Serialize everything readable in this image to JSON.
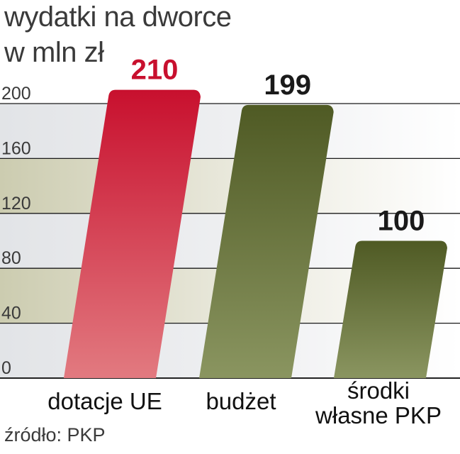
{
  "chart_data": {
    "type": "bar",
    "title_lines": [
      "wydatki na dworce",
      "w mln zł"
    ],
    "categories": [
      [
        "dotacje UE"
      ],
      [
        "budżet"
      ],
      [
        "środki",
        "własne PKP"
      ]
    ],
    "values": [
      210,
      199,
      100
    ],
    "value_labels": [
      "210",
      "199",
      "100"
    ],
    "ylim": [
      0,
      200
    ],
    "yticks": [
      "0",
      "40",
      "80",
      "120",
      "160",
      "200"
    ],
    "grid": true,
    "colors": {
      "highlight": "#c8102e",
      "bar": "#4f5a24",
      "bar_light": "#8a9560"
    },
    "source": "źródło: PKP"
  }
}
